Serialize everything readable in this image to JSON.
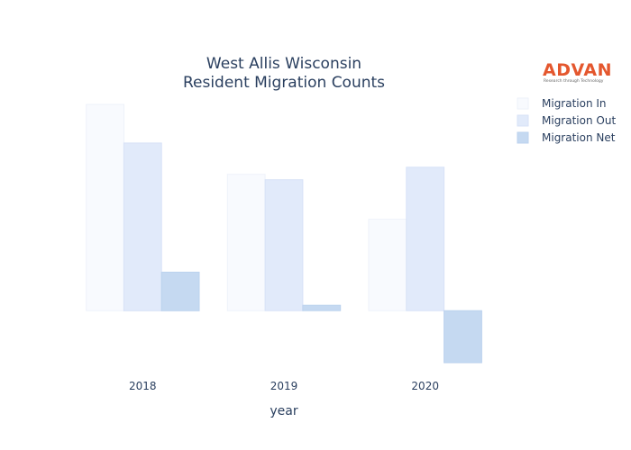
{
  "brand": {
    "name": "ADVAN",
    "tagline": "Research through Technology",
    "color": "#e4572e"
  },
  "chart_data": {
    "type": "bar",
    "title_lines": [
      "West Allis Wisconsin",
      "Resident Migration Counts"
    ],
    "xlabel": "year",
    "ylabel": "",
    "categories": [
      "2018",
      "2019",
      "2020"
    ],
    "series": [
      {
        "name": "Migration In",
        "values": [
          2300,
          1520,
          1020
        ],
        "color": "#f8fafe",
        "stroke": "#eef2fa"
      },
      {
        "name": "Migration Out",
        "values": [
          1870,
          1460,
          1600
        ],
        "color": "#e1eafa",
        "stroke": "#d7e2f7"
      },
      {
        "name": "Migration Net",
        "values": [
          430,
          60,
          -580
        ],
        "color": "#c5d9f1",
        "stroke": "#bcd2ee"
      }
    ],
    "ylim": [
      -600,
      2300
    ],
    "grid": false,
    "legend_position": "top-right"
  }
}
